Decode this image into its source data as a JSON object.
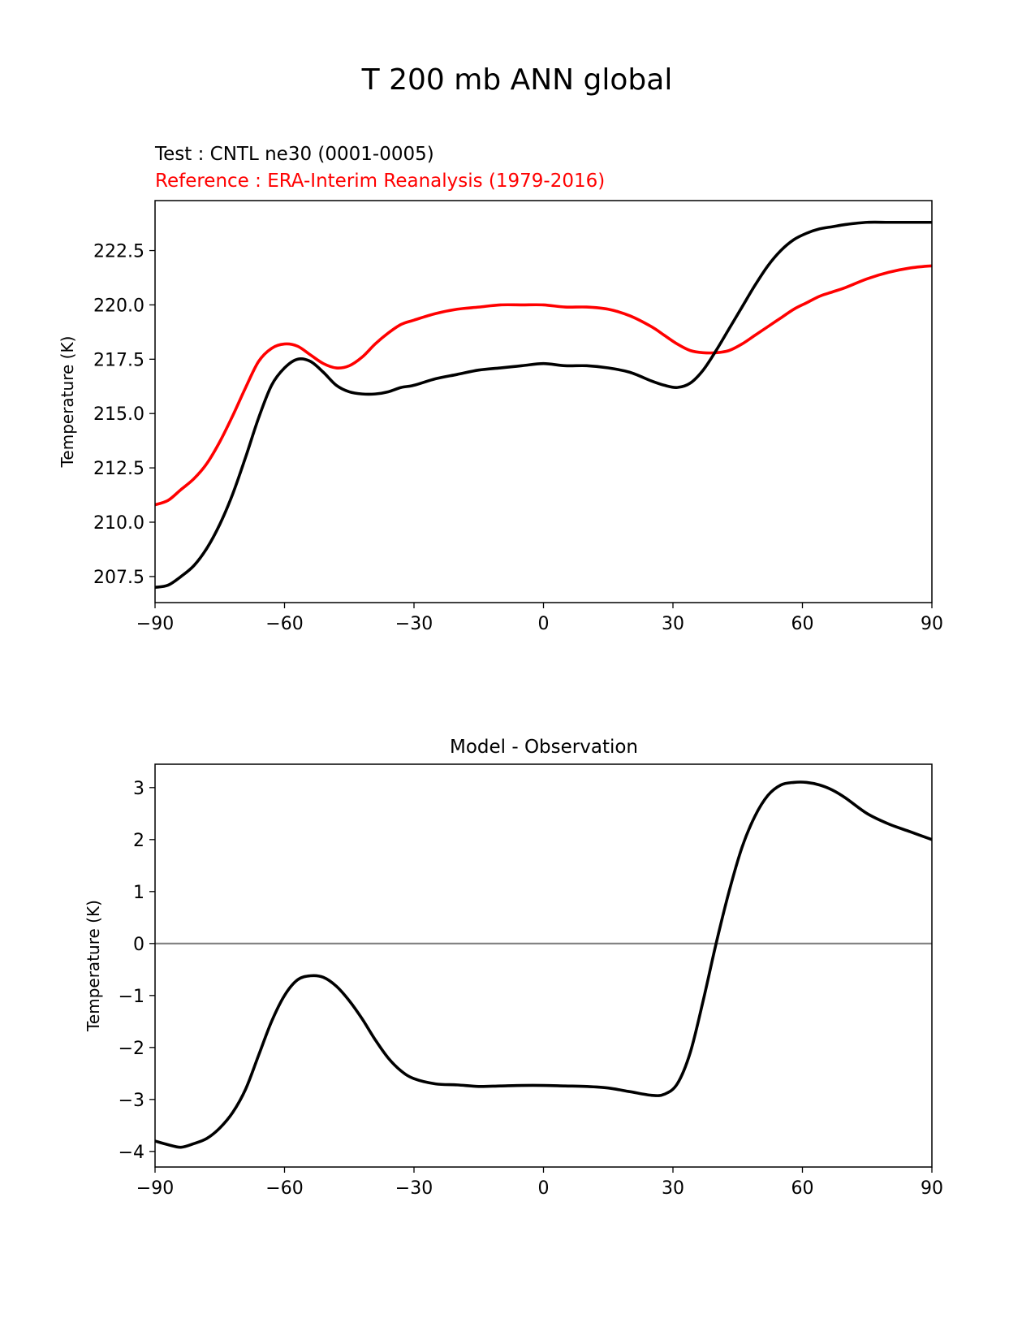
{
  "figure": {
    "title": "T 200 mb ANN global"
  },
  "colors": {
    "test": "#000000",
    "reference": "#ff0000",
    "zero_line": "#808080"
  },
  "chart_data": [
    {
      "type": "line",
      "test_label": "Test : CNTL ne30 (0001-0005)",
      "reference_label": "Reference : ERA-Interim Reanalysis (1979-2016)",
      "xlabel": "",
      "ylabel": "Temperature (K)",
      "xlim": [
        -90,
        90
      ],
      "ylim": [
        206.3,
        224.8
      ],
      "xticks": [
        -90,
        -60,
        -30,
        0,
        30,
        60,
        90
      ],
      "xtick_labels": [
        "−90",
        "−60",
        "−30",
        "0",
        "30",
        "60",
        "90"
      ],
      "yticks": [
        207.5,
        210.0,
        212.5,
        215.0,
        217.5,
        220.0,
        222.5
      ],
      "ytick_labels": [
        "207.5",
        "210.0",
        "212.5",
        "215.0",
        "217.5",
        "220.0",
        "222.5"
      ],
      "series": [
        {
          "name": "Test : CNTL ne30 (0001-0005)",
          "role": "test",
          "x": [
            -90,
            -87,
            -84,
            -81,
            -78,
            -75,
            -72,
            -69,
            -66,
            -63,
            -60,
            -57,
            -54,
            -51,
            -48,
            -45,
            -42,
            -39,
            -36,
            -33,
            -30,
            -25,
            -20,
            -15,
            -10,
            -5,
            0,
            5,
            10,
            15,
            20,
            25,
            28,
            31,
            34,
            37,
            40,
            43,
            46,
            49,
            52,
            55,
            58,
            61,
            64,
            67,
            70,
            75,
            80,
            85,
            90
          ],
          "y": [
            207.0,
            207.1,
            207.5,
            208.0,
            208.8,
            209.9,
            211.3,
            213.0,
            214.8,
            216.3,
            217.1,
            217.5,
            217.4,
            216.9,
            216.3,
            216.0,
            215.9,
            215.9,
            216.0,
            216.2,
            216.3,
            216.6,
            216.8,
            217.0,
            217.1,
            217.2,
            217.3,
            217.2,
            217.2,
            217.1,
            216.9,
            216.5,
            216.3,
            216.2,
            216.4,
            217.0,
            217.9,
            218.9,
            219.9,
            220.9,
            221.8,
            222.5,
            223.0,
            223.3,
            223.5,
            223.6,
            223.7,
            223.8,
            223.8,
            223.8,
            223.8
          ]
        },
        {
          "name": "Reference : ERA-Interim Reanalysis (1979-2016)",
          "role": "reference",
          "x": [
            -90,
            -87,
            -84,
            -81,
            -78,
            -75,
            -72,
            -69,
            -66,
            -63,
            -60,
            -57,
            -54,
            -51,
            -48,
            -45,
            -42,
            -39,
            -36,
            -33,
            -30,
            -25,
            -20,
            -15,
            -10,
            -5,
            0,
            5,
            10,
            15,
            20,
            25,
            28,
            31,
            34,
            37,
            40,
            43,
            46,
            49,
            52,
            55,
            58,
            61,
            64,
            67,
            70,
            75,
            80,
            85,
            90
          ],
          "y": [
            210.8,
            211.0,
            211.5,
            212.0,
            212.7,
            213.7,
            214.9,
            216.2,
            217.4,
            218.0,
            218.2,
            218.1,
            217.7,
            217.3,
            217.1,
            217.2,
            217.6,
            218.2,
            218.7,
            219.1,
            219.3,
            219.6,
            219.8,
            219.9,
            220.0,
            220.0,
            220.0,
            219.9,
            219.9,
            219.8,
            219.5,
            219.0,
            218.6,
            218.2,
            217.9,
            217.8,
            217.8,
            217.9,
            218.2,
            218.6,
            219.0,
            219.4,
            219.8,
            220.1,
            220.4,
            220.6,
            220.8,
            221.2,
            221.5,
            221.7,
            221.8
          ]
        }
      ]
    },
    {
      "type": "line",
      "title": "Model - Observation",
      "xlabel": "",
      "ylabel": "Temperature (K)",
      "xlim": [
        -90,
        90
      ],
      "ylim": [
        -4.3,
        3.45
      ],
      "xticks": [
        -90,
        -60,
        -30,
        0,
        30,
        60,
        90
      ],
      "xtick_labels": [
        "−90",
        "−60",
        "−30",
        "0",
        "30",
        "60",
        "90"
      ],
      "yticks": [
        -4,
        -3,
        -2,
        -1,
        0,
        1,
        2,
        3
      ],
      "ytick_labels": [
        "−4",
        "−3",
        "−2",
        "−1",
        "0",
        "1",
        "2",
        "3"
      ],
      "zero_line": 0,
      "series": [
        {
          "name": "Model - Observation",
          "role": "test",
          "x": [
            -90,
            -87,
            -84,
            -81,
            -78,
            -75,
            -72,
            -69,
            -66,
            -63,
            -60,
            -57,
            -54,
            -51,
            -48,
            -45,
            -42,
            -39,
            -36,
            -33,
            -30,
            -25,
            -20,
            -15,
            -10,
            -5,
            0,
            5,
            10,
            15,
            20,
            25,
            28,
            31,
            34,
            37,
            40,
            43,
            46,
            49,
            52,
            55,
            58,
            61,
            64,
            67,
            70,
            75,
            80,
            85,
            90
          ],
          "y": [
            -3.8,
            -3.87,
            -3.92,
            -3.85,
            -3.75,
            -3.55,
            -3.25,
            -2.8,
            -2.15,
            -1.5,
            -1.0,
            -0.7,
            -0.62,
            -0.65,
            -0.82,
            -1.1,
            -1.45,
            -1.85,
            -2.2,
            -2.45,
            -2.6,
            -2.7,
            -2.72,
            -2.75,
            -2.74,
            -2.73,
            -2.73,
            -2.74,
            -2.75,
            -2.78,
            -2.85,
            -2.92,
            -2.9,
            -2.7,
            -2.1,
            -1.1,
            0.0,
            1.0,
            1.85,
            2.45,
            2.85,
            3.05,
            3.1,
            3.1,
            3.05,
            2.95,
            2.8,
            2.5,
            2.3,
            2.15,
            2.0
          ]
        }
      ]
    }
  ]
}
